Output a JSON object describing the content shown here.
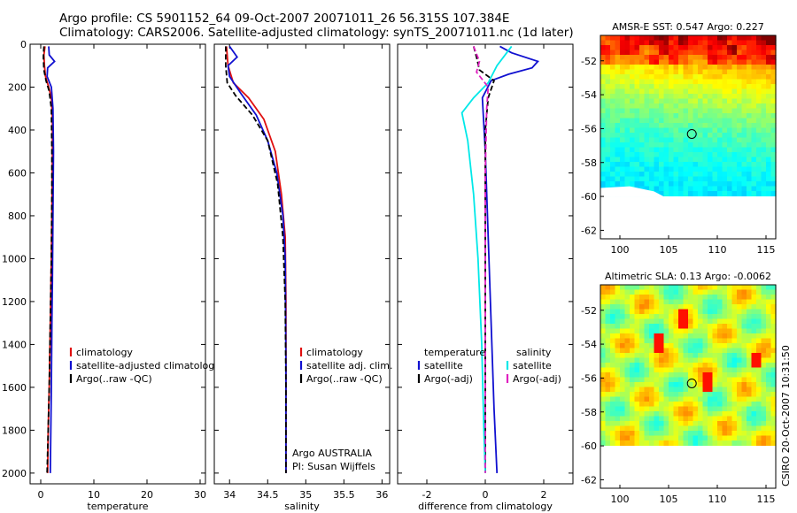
{
  "title": {
    "line1": "Argo profile: CS 5901152_64 09-Oct-2007 20071011_26 56.315S 107.384E",
    "line2": "Climatology: CARS2006. Satellite-adjusted climatology: synTS_20071011.nc (1d later)"
  },
  "side_text": "CSIRO 20-Oct-2007 10:31:50",
  "annotation": {
    "line1": "Argo AUSTRALIA",
    "line2": "PI: Susan Wijffels"
  },
  "colors": {
    "red": "#e01010",
    "blue": "#1010d0",
    "black": "#000000",
    "cyan": "#00e8e8",
    "magenta": "#e020c0"
  },
  "chart_data": [
    {
      "type": "line",
      "xlabel": "temperature",
      "xlim": [
        -2,
        31
      ],
      "ylim": [
        2050,
        0
      ],
      "xticks": [
        "0",
        "10",
        "20",
        "30"
      ],
      "yticks": [
        "0",
        "200",
        "400",
        "600",
        "800",
        "1000",
        "1200",
        "1400",
        "1600",
        "1800",
        "2000"
      ],
      "legend": {
        "placement": "lower-middle",
        "entries": [
          "climatology",
          "satellite-adjusted climatology",
          "Argo(..raw -QC)"
        ]
      },
      "series": [
        {
          "name": "climatology",
          "color": "red",
          "x": [
            0.8,
            0.6,
            0.7,
            0.9,
            1.5,
            2.0,
            2.2,
            2.2,
            2.1,
            2.0,
            1.8,
            1.6,
            1.4,
            1.3
          ],
          "y": [
            10,
            50,
            100,
            150,
            200,
            250,
            350,
            500,
            800,
            1000,
            1300,
            1600,
            1800,
            2000
          ]
        },
        {
          "name": "satellite-adjusted climatology",
          "color": "blue",
          "x": [
            1.5,
            1.6,
            2.6,
            1.3,
            1.2,
            2.0,
            2.3,
            2.4,
            2.3,
            2.2,
            2.1,
            2.0,
            1.9,
            1.8
          ],
          "y": [
            10,
            50,
            80,
            110,
            150,
            200,
            300,
            500,
            800,
            1100,
            1300,
            1600,
            1800,
            2000
          ]
        },
        {
          "name": "Argo(..raw -QC)",
          "color": "black",
          "x": [
            0.6,
            0.5,
            0.6,
            1.0,
            1.6,
            2.0,
            2.1,
            2.1,
            2.0,
            1.8,
            1.6,
            1.4,
            1.2
          ],
          "y": [
            10,
            60,
            120,
            170,
            220,
            300,
            500,
            700,
            1000,
            1300,
            1600,
            1800,
            2000
          ]
        }
      ]
    },
    {
      "type": "line",
      "xlabel": "salinity",
      "xlim": [
        33.8,
        36.1
      ],
      "ylim": [
        2050,
        0
      ],
      "xticks": [
        "34",
        "34.5",
        "35",
        "35.5",
        "36"
      ],
      "legend": {
        "placement": "lower-middle",
        "entries": [
          "climatology",
          "satellite adj. clim.",
          "Argo(..raw -QC)"
        ]
      },
      "series": [
        {
          "name": "climatology",
          "color": "red",
          "x": [
            33.96,
            33.98,
            34.05,
            34.25,
            34.45,
            34.6,
            34.68,
            34.73,
            34.74,
            34.74,
            34.74
          ],
          "y": [
            10,
            100,
            180,
            250,
            350,
            500,
            700,
            900,
            1200,
            1600,
            2000
          ]
        },
        {
          "name": "satellite adj. clim.",
          "color": "blue",
          "x": [
            34.0,
            34.1,
            33.98,
            34.0,
            34.15,
            34.35,
            34.5,
            34.62,
            34.7,
            34.73,
            34.74,
            34.74
          ],
          "y": [
            10,
            60,
            100,
            150,
            230,
            330,
            450,
            600,
            800,
            1000,
            1500,
            2000
          ]
        },
        {
          "name": "Argo(..raw -QC)",
          "color": "black",
          "x": [
            33.95,
            33.95,
            33.97,
            34.08,
            34.3,
            34.5,
            34.63,
            34.7,
            34.73,
            34.74,
            34.74
          ],
          "y": [
            10,
            100,
            180,
            240,
            330,
            450,
            650,
            900,
            1200,
            1600,
            2000
          ]
        }
      ]
    },
    {
      "type": "line",
      "xlabel": "difference from climatology",
      "xlim": [
        -3,
        3
      ],
      "ylim": [
        2050,
        0
      ],
      "xticks": [
        "-2",
        "0",
        "2"
      ],
      "legend": {
        "placement": "lower-middle",
        "headers": [
          "temperature",
          "salinity"
        ],
        "entries": [
          "satellite",
          "Argo(-adj)",
          "satellite",
          "Argo(-adj)"
        ]
      },
      "series": [
        {
          "name": "temperature satellite",
          "color": "blue",
          "x": [
            0.5,
            0.9,
            1.8,
            1.6,
            0.8,
            0.2,
            -0.1,
            0.0,
            0.1,
            0.2,
            0.3,
            0.4
          ],
          "y": [
            10,
            40,
            80,
            110,
            140,
            170,
            250,
            500,
            900,
            1300,
            1700,
            2000
          ]
        },
        {
          "name": "temperature Argo(-adj)",
          "color": "black",
          "x": [
            -0.4,
            -0.3,
            -0.2,
            0.3,
            0.1,
            0.0,
            0.0,
            0.0,
            0.0,
            0.0
          ],
          "y": [
            10,
            60,
            120,
            170,
            250,
            400,
            800,
            1200,
            1600,
            2000
          ]
        },
        {
          "name": "salinity satellite",
          "color": "cyan",
          "x": [
            0.9,
            0.4,
            0.1,
            -0.4,
            -0.8,
            -0.6,
            -0.4,
            -0.25,
            -0.12,
            -0.05,
            0.0
          ],
          "y": [
            10,
            100,
            180,
            250,
            320,
            450,
            700,
            1000,
            1400,
            1800,
            2000
          ]
        },
        {
          "name": "salinity Argo(-adj)",
          "color": "magenta",
          "x": [
            -0.4,
            -0.2,
            -0.3,
            0.1,
            0.05,
            0.0,
            0.0,
            0.0
          ],
          "y": [
            10,
            80,
            130,
            200,
            300,
            600,
            1200,
            2000
          ]
        }
      ]
    },
    {
      "type": "heatmap",
      "title": "AMSR-E SST: 0.547 Argo: 0.227",
      "xlim": [
        98,
        116
      ],
      "ylim": [
        -62.5,
        -50.5
      ],
      "xticks": [
        "100",
        "105",
        "110",
        "115"
      ],
      "yticks": [
        "-52",
        "-54",
        "-56",
        "-58",
        "-60",
        "-62"
      ],
      "marker": {
        "x": 107.384,
        "y": -56.315
      }
    },
    {
      "type": "heatmap",
      "title": "Altimetric SLA: 0.13 Argo: -0.0062",
      "xlim": [
        98,
        116
      ],
      "ylim": [
        -62.5,
        -50.5
      ],
      "xticks": [
        "100",
        "105",
        "110",
        "115"
      ],
      "yticks": [
        "-52",
        "-54",
        "-56",
        "-58",
        "-60",
        "-62"
      ],
      "marker": {
        "x": 107.384,
        "y": -56.315
      }
    }
  ]
}
